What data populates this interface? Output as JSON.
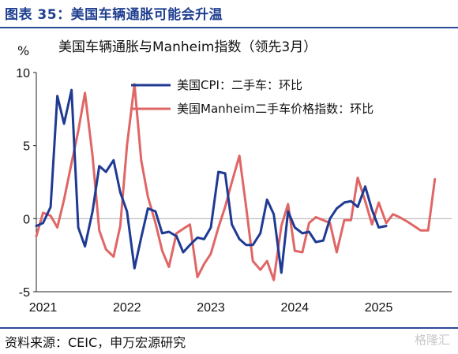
{
  "figure": {
    "title": "图表 35：美国车辆通胀可能会升温",
    "source": "资料来源：CEIC，申万宏源研究",
    "watermark": "格隆汇"
  },
  "chart_data": {
    "type": "line",
    "title": "美国车辆通胀与Manheim指数（领先3月）",
    "ylabel": "%",
    "ylim": [
      -5,
      10
    ],
    "yticks": [
      -5,
      0,
      5,
      10
    ],
    "xlim": [
      2021.0,
      2025.95
    ],
    "xticks": [
      {
        "label": "2021",
        "value": 2021.08
      },
      {
        "label": "2022",
        "value": 2022.08
      },
      {
        "label": "2023",
        "value": 2023.08
      },
      {
        "label": "2024",
        "value": 2024.08
      },
      {
        "label": "2025",
        "value": 2025.08
      }
    ],
    "legend_position": "top-right",
    "series": [
      {
        "name": "美国CPI：二手车：环比",
        "color": "#1f3a93",
        "points": [
          [
            2021.0,
            -0.5
          ],
          [
            2021.08,
            -0.3
          ],
          [
            2021.17,
            0.8
          ],
          [
            2021.25,
            8.4
          ],
          [
            2021.33,
            6.5
          ],
          [
            2021.42,
            8.8
          ],
          [
            2021.5,
            -0.6
          ],
          [
            2021.58,
            -1.9
          ],
          [
            2021.67,
            0.5
          ],
          [
            2021.75,
            3.6
          ],
          [
            2021.83,
            3.2
          ],
          [
            2021.92,
            4.0
          ],
          [
            2022.0,
            1.8
          ],
          [
            2022.08,
            0.5
          ],
          [
            2022.17,
            -3.4
          ],
          [
            2022.25,
            -1.3
          ],
          [
            2022.33,
            0.7
          ],
          [
            2022.42,
            0.5
          ],
          [
            2022.5,
            -1.0
          ],
          [
            2022.58,
            -0.9
          ],
          [
            2022.67,
            -1.2
          ],
          [
            2022.75,
            -2.3
          ],
          [
            2022.83,
            -1.8
          ],
          [
            2022.92,
            -1.3
          ],
          [
            2023.0,
            -1.4
          ],
          [
            2023.08,
            -0.6
          ],
          [
            2023.17,
            3.2
          ],
          [
            2023.25,
            3.1
          ],
          [
            2023.33,
            -0.4
          ],
          [
            2023.42,
            -1.4
          ],
          [
            2023.5,
            -1.8
          ],
          [
            2023.58,
            -1.8
          ],
          [
            2023.67,
            -1.0
          ],
          [
            2023.75,
            1.3
          ],
          [
            2023.83,
            0.3
          ],
          [
            2023.92,
            -3.7
          ],
          [
            2024.0,
            0.5
          ],
          [
            2024.08,
            -0.6
          ],
          [
            2024.17,
            -1.0
          ],
          [
            2024.25,
            -0.9
          ],
          [
            2024.33,
            -1.6
          ],
          [
            2024.42,
            -1.5
          ],
          [
            2024.5,
            0.0
          ],
          [
            2024.58,
            0.7
          ],
          [
            2024.67,
            1.1
          ],
          [
            2024.75,
            1.2
          ],
          [
            2024.83,
            0.8
          ],
          [
            2024.92,
            2.2
          ],
          [
            2025.0,
            0.6
          ],
          [
            2025.08,
            -0.6
          ],
          [
            2025.17,
            -0.5
          ]
        ]
      },
      {
        "name": "美国Manheim二手车价格指数：环比",
        "color": "#e06666",
        "points": [
          [
            2021.0,
            -1.2
          ],
          [
            2021.08,
            0.4
          ],
          [
            2021.17,
            0.2
          ],
          [
            2021.25,
            -0.6
          ],
          [
            2021.33,
            1.3
          ],
          [
            2021.42,
            3.8
          ],
          [
            2021.5,
            6.0
          ],
          [
            2021.58,
            8.6
          ],
          [
            2021.67,
            4.3
          ],
          [
            2021.75,
            -0.8
          ],
          [
            2021.83,
            -2.1
          ],
          [
            2021.92,
            -2.6
          ],
          [
            2022.0,
            -0.5
          ],
          [
            2022.08,
            5.0
          ],
          [
            2022.17,
            9.2
          ],
          [
            2022.25,
            4.0
          ],
          [
            2022.33,
            1.5
          ],
          [
            2022.42,
            -0.3
          ],
          [
            2022.5,
            -2.2
          ],
          [
            2022.58,
            -3.3
          ],
          [
            2022.67,
            -1.0
          ],
          [
            2022.75,
            -0.7
          ],
          [
            2022.83,
            -0.4
          ],
          [
            2022.92,
            -4.0
          ],
          [
            2023.0,
            -3.1
          ],
          [
            2023.08,
            -2.4
          ],
          [
            2023.17,
            -0.6
          ],
          [
            2023.25,
            0.8
          ],
          [
            2023.33,
            2.5
          ],
          [
            2023.42,
            4.3
          ],
          [
            2023.5,
            0.8
          ],
          [
            2023.58,
            -2.9
          ],
          [
            2023.67,
            -3.5
          ],
          [
            2023.75,
            -2.9
          ],
          [
            2023.83,
            -4.2
          ],
          [
            2023.92,
            -0.5
          ],
          [
            2024.0,
            1.0
          ],
          [
            2024.08,
            -2.2
          ],
          [
            2024.17,
            -2.3
          ],
          [
            2024.25,
            -0.3
          ],
          [
            2024.33,
            0.1
          ],
          [
            2024.42,
            -0.1
          ],
          [
            2024.5,
            -0.3
          ],
          [
            2024.58,
            -2.3
          ],
          [
            2024.67,
            -0.1
          ],
          [
            2024.75,
            -0.1
          ],
          [
            2024.83,
            2.8
          ],
          [
            2024.92,
            1.2
          ],
          [
            2025.0,
            -0.4
          ],
          [
            2025.08,
            1.1
          ],
          [
            2025.17,
            -0.3
          ],
          [
            2025.25,
            0.3
          ],
          [
            2025.33,
            0.1
          ],
          [
            2025.42,
            -0.2
          ],
          [
            2025.5,
            -0.5
          ],
          [
            2025.58,
            -0.8
          ],
          [
            2025.67,
            -0.8
          ],
          [
            2025.75,
            2.7
          ]
        ]
      }
    ]
  }
}
